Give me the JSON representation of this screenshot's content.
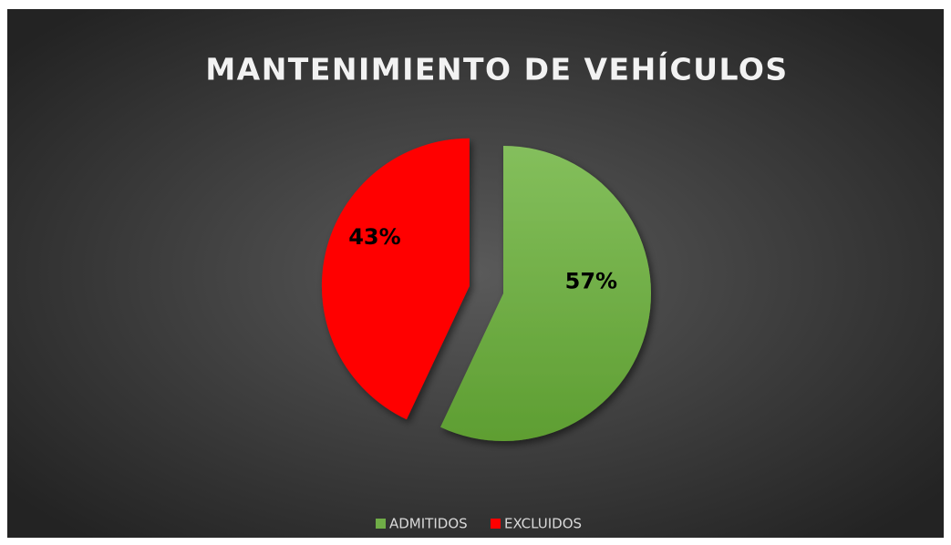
{
  "chart_data": {
    "type": "pie",
    "title": "MANTENIMIENTO DE VEHÍCULOS",
    "categories": [
      "ADMITIDOS",
      "EXCLUIDOS"
    ],
    "values": [
      57,
      43
    ],
    "value_labels": [
      "57%",
      "43%"
    ],
    "colors": [
      "#70ad47",
      "#ff0000"
    ],
    "legend": "bottom"
  }
}
